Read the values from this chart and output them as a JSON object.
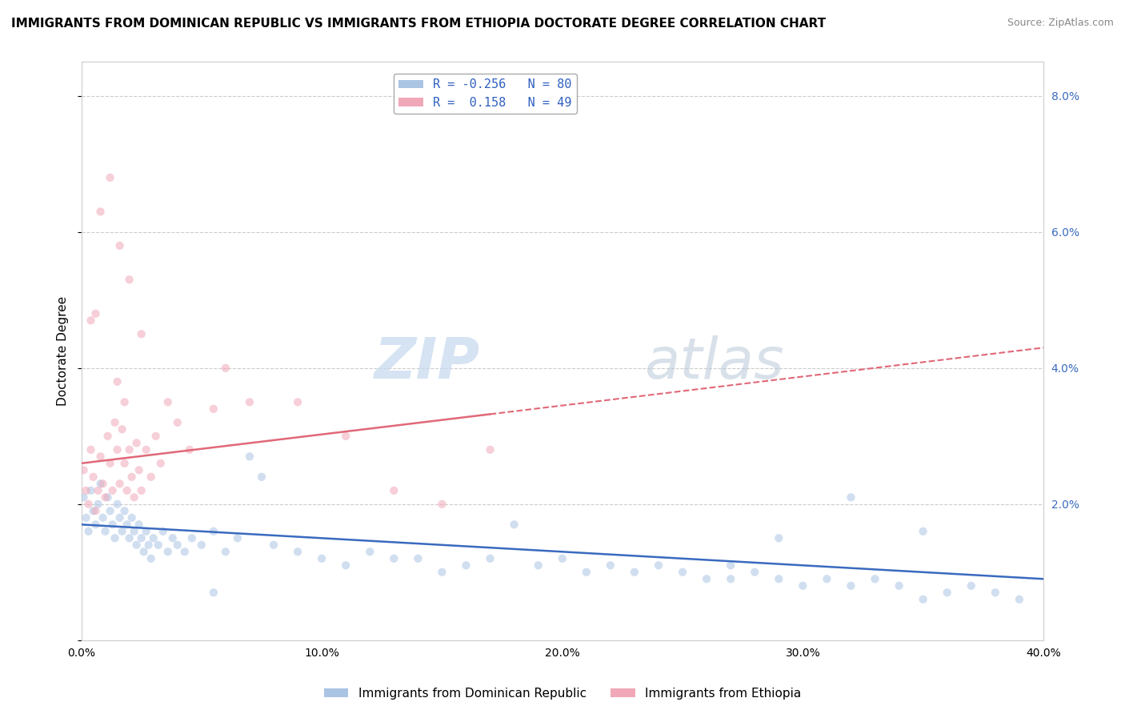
{
  "title": "IMMIGRANTS FROM DOMINICAN REPUBLIC VS IMMIGRANTS FROM ETHIOPIA DOCTORATE DEGREE CORRELATION CHART",
  "source": "Source: ZipAtlas.com",
  "ylabel": "Doctorate Degree",
  "xlim": [
    0.0,
    0.4
  ],
  "ylim": [
    0.0,
    0.085
  ],
  "yticks": [
    0.0,
    0.02,
    0.04,
    0.06,
    0.08
  ],
  "ytick_labels_right": [
    "",
    "2.0%",
    "4.0%",
    "6.0%",
    "8.0%"
  ],
  "xticks": [
    0.0,
    0.1,
    0.2,
    0.3,
    0.4
  ],
  "xtick_labels": [
    "0.0%",
    "10.0%",
    "20.0%",
    "30.0%",
    "40.0%"
  ],
  "series1_name": "Immigrants from Dominican Republic",
  "series1_color": "#aac4e4",
  "series2_name": "Immigrants from Ethiopia",
  "series2_color": "#f0a8b8",
  "series1_x": [
    0.001,
    0.002,
    0.003,
    0.004,
    0.005,
    0.006,
    0.007,
    0.008,
    0.009,
    0.01,
    0.011,
    0.012,
    0.013,
    0.014,
    0.015,
    0.016,
    0.017,
    0.018,
    0.019,
    0.02,
    0.021,
    0.022,
    0.023,
    0.024,
    0.025,
    0.026,
    0.027,
    0.028,
    0.029,
    0.03,
    0.032,
    0.034,
    0.036,
    0.038,
    0.04,
    0.043,
    0.046,
    0.05,
    0.055,
    0.06,
    0.065,
    0.07,
    0.08,
    0.09,
    0.1,
    0.11,
    0.13,
    0.15,
    0.17,
    0.19,
    0.2,
    0.21,
    0.22,
    0.23,
    0.24,
    0.25,
    0.26,
    0.27,
    0.28,
    0.29,
    0.3,
    0.31,
    0.32,
    0.33,
    0.34,
    0.35,
    0.36,
    0.37,
    0.38,
    0.39,
    0.055,
    0.075,
    0.12,
    0.14,
    0.16,
    0.18,
    0.32,
    0.35,
    0.29,
    0.27
  ],
  "series1_y": [
    0.021,
    0.018,
    0.016,
    0.022,
    0.019,
    0.017,
    0.02,
    0.023,
    0.018,
    0.016,
    0.021,
    0.019,
    0.017,
    0.015,
    0.02,
    0.018,
    0.016,
    0.019,
    0.017,
    0.015,
    0.018,
    0.016,
    0.014,
    0.017,
    0.015,
    0.013,
    0.016,
    0.014,
    0.012,
    0.015,
    0.014,
    0.016,
    0.013,
    0.015,
    0.014,
    0.013,
    0.015,
    0.014,
    0.016,
    0.013,
    0.015,
    0.027,
    0.014,
    0.013,
    0.012,
    0.011,
    0.012,
    0.01,
    0.012,
    0.011,
    0.012,
    0.01,
    0.011,
    0.01,
    0.011,
    0.01,
    0.009,
    0.011,
    0.01,
    0.009,
    0.008,
    0.009,
    0.008,
    0.009,
    0.008,
    0.006,
    0.007,
    0.008,
    0.007,
    0.006,
    0.007,
    0.024,
    0.013,
    0.012,
    0.011,
    0.017,
    0.021,
    0.016,
    0.015,
    0.009
  ],
  "series2_x": [
    0.001,
    0.002,
    0.003,
    0.004,
    0.005,
    0.006,
    0.007,
    0.008,
    0.009,
    0.01,
    0.011,
    0.012,
    0.013,
    0.014,
    0.015,
    0.016,
    0.017,
    0.018,
    0.019,
    0.02,
    0.021,
    0.022,
    0.023,
    0.024,
    0.025,
    0.027,
    0.029,
    0.031,
    0.033,
    0.036,
    0.04,
    0.045,
    0.055,
    0.06,
    0.07,
    0.09,
    0.11,
    0.13,
    0.15,
    0.17,
    0.008,
    0.012,
    0.016,
    0.02,
    0.025,
    0.004,
    0.006,
    0.018,
    0.015
  ],
  "series2_y": [
    0.025,
    0.022,
    0.02,
    0.028,
    0.024,
    0.019,
    0.022,
    0.027,
    0.023,
    0.021,
    0.03,
    0.026,
    0.022,
    0.032,
    0.028,
    0.023,
    0.031,
    0.026,
    0.022,
    0.028,
    0.024,
    0.021,
    0.029,
    0.025,
    0.022,
    0.028,
    0.024,
    0.03,
    0.026,
    0.035,
    0.032,
    0.028,
    0.034,
    0.04,
    0.035,
    0.035,
    0.03,
    0.022,
    0.02,
    0.028,
    0.063,
    0.068,
    0.058,
    0.053,
    0.045,
    0.047,
    0.048,
    0.035,
    0.038
  ],
  "trendline1_color": "#3a6abf",
  "trendline1_style": "-",
  "trendline2_color": "#e06878",
  "trendline2_style": "--",
  "trendline1_start_y": 0.017,
  "trendline1_end_y": 0.009,
  "trendline2_start_y": 0.026,
  "trendline2_end_y": 0.043,
  "watermark_zip": "ZIP",
  "watermark_atlas": "atlas",
  "background_color": "#ffffff",
  "grid_color": "#cccccc",
  "title_fontsize": 11,
  "tick_fontsize": 10,
  "dot_size": 55,
  "dot_alpha": 0.55
}
